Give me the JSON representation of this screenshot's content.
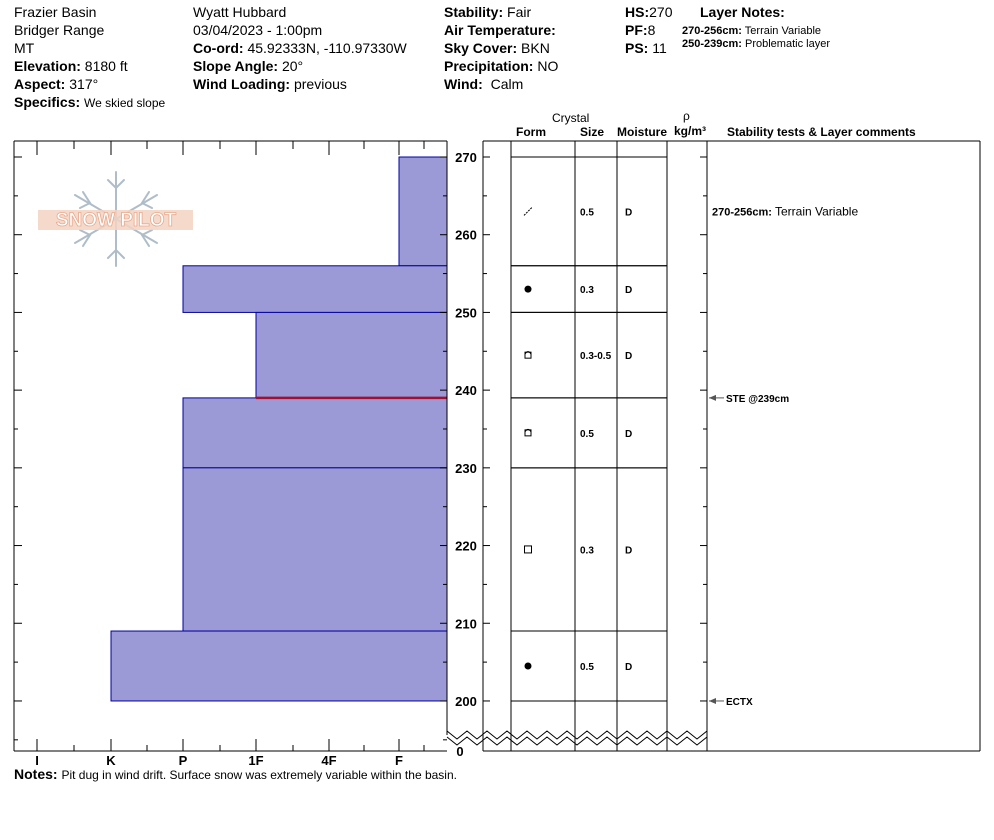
{
  "header": {
    "location": "Frazier Basin",
    "range": "Bridger Range",
    "state": "MT",
    "elevation_label": "Elevation:",
    "elevation_value": "8180 ft",
    "aspect_label": "Aspect:",
    "aspect_value": "317°",
    "specifics_label": "Specifics:",
    "specifics_value": "We skied slope",
    "observer": "Wyatt Hubbard",
    "datetime": "03/04/2023 - 1:00pm",
    "coord_label": "Co-ord:",
    "coord_value": "45.92333N, -110.97330W",
    "slope_label": "Slope Angle:",
    "slope_value": "20°",
    "wind_loading_label": "Wind Loading:",
    "wind_loading_value": "previous",
    "stability_label": "Stability:",
    "stability_value": "Fair",
    "air_temp_label": "Air Temperature:",
    "air_temp_value": "",
    "sky_label": "Sky Cover:",
    "sky_value": "BKN",
    "precip_label": "Precipitation:",
    "precip_value": "NO",
    "wind_label": "Wind:",
    "wind_value": "Calm",
    "hs_label": "HS:",
    "hs_value": "270",
    "pf_label": "PF:",
    "pf_value": "8",
    "ps_label": "PS:",
    "ps_value": "11",
    "layer_notes_label": "Layer Notes:",
    "layer_notes": [
      {
        "range": "270-256cm:",
        "text": "Terrain Variable"
      },
      {
        "range": "250-239cm:",
        "text": "Problematic layer"
      }
    ]
  },
  "logo_text": "SNOW PILOT",
  "table_headers": {
    "crystal": "Crystal",
    "form": "Form",
    "size": "Size",
    "moisture": "Moisture",
    "rho": "ρ",
    "density_unit": "kg/m³",
    "stability": "Stability tests & Layer comments"
  },
  "notes_label": "Notes:",
  "notes_text": "Pit dug in wind drift. Surface snow was extremely variable within the basin.",
  "chart_data": {
    "type": "bar",
    "orientation": "horizontal",
    "xlabel": "",
    "ylabel": "",
    "hardness_scale": [
      "I",
      "K",
      "P",
      "1F",
      "4F",
      "F"
    ],
    "y_ticks": [
      270,
      260,
      250,
      240,
      230,
      220,
      210,
      200
    ],
    "y_bottom_label": "0",
    "ylim": [
      200,
      270
    ],
    "layers": [
      {
        "top": 270,
        "bottom": 256,
        "hardness": "F",
        "form": "decomposing",
        "size": "0.5",
        "moisture": "D"
      },
      {
        "top": 256,
        "bottom": 250,
        "hardness": "P",
        "form": "rounded",
        "size": "0.3",
        "moisture": "D"
      },
      {
        "top": 250,
        "bottom": 239,
        "hardness": "1F",
        "form": "faceted-rounded",
        "size": "0.3-0.5",
        "moisture": "D"
      },
      {
        "top": 239,
        "bottom": 230,
        "hardness": "P",
        "form": "faceted-rounded",
        "size": "0.5",
        "moisture": "D"
      },
      {
        "top": 230,
        "bottom": 209,
        "hardness": "P",
        "form": "faceted",
        "size": "0.3",
        "moisture": "D"
      },
      {
        "top": 209,
        "bottom": 200,
        "hardness": "K",
        "form": "rounded",
        "size": "0.5",
        "moisture": "D"
      }
    ],
    "problem_layer_depth": 239,
    "comments": [
      {
        "depth": 256,
        "range": "270-256cm:",
        "text": "Terrain Variable"
      }
    ],
    "tests": [
      {
        "depth": 239,
        "text": "STE @239cm"
      },
      {
        "depth": 200,
        "text": "ECTX"
      }
    ],
    "colors": {
      "bar_fill": "#9b99d6",
      "bar_stroke": "#0000a0",
      "problem_line": "#a01030",
      "test_arrow": "#555555"
    }
  }
}
